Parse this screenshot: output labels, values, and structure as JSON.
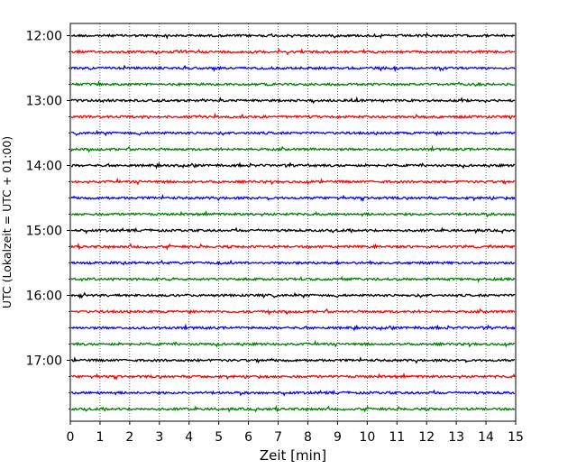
{
  "chart_data": {
    "type": "line",
    "title": "",
    "xlabel": "Zeit  [min]",
    "ylabel": "UTC (Lokalzeit = UTC + 01:00)",
    "xlim": [
      0,
      15
    ],
    "x_ticks": [
      "0",
      "1",
      "2",
      "3",
      "4",
      "5",
      "6",
      "7",
      "8",
      "9",
      "10",
      "11",
      "12",
      "13",
      "14",
      "15"
    ],
    "y_ticks": [
      "12:00",
      "13:00",
      "14:00",
      "15:00",
      "16:00",
      "17:00"
    ],
    "grid": "x-dotted",
    "trace_interval_min": 15,
    "first_trace": "12:00",
    "last_trace": "17:45",
    "trace_colors": [
      "#000000",
      "#ff0000",
      "#0000ff",
      "#008000"
    ],
    "series": [
      {
        "start": "12:00",
        "color": "#000000"
      },
      {
        "start": "12:15",
        "color": "#ff0000"
      },
      {
        "start": "12:30",
        "color": "#0000ff"
      },
      {
        "start": "12:45",
        "color": "#008000"
      },
      {
        "start": "13:00",
        "color": "#000000"
      },
      {
        "start": "13:15",
        "color": "#ff0000"
      },
      {
        "start": "13:30",
        "color": "#0000ff"
      },
      {
        "start": "13:45",
        "color": "#008000"
      },
      {
        "start": "14:00",
        "color": "#000000"
      },
      {
        "start": "14:15",
        "color": "#ff0000"
      },
      {
        "start": "14:30",
        "color": "#0000ff"
      },
      {
        "start": "14:45",
        "color": "#008000"
      },
      {
        "start": "15:00",
        "color": "#000000"
      },
      {
        "start": "15:15",
        "color": "#ff0000"
      },
      {
        "start": "15:30",
        "color": "#0000ff"
      },
      {
        "start": "15:45",
        "color": "#008000"
      },
      {
        "start": "16:00",
        "color": "#000000"
      },
      {
        "start": "16:15",
        "color": "#ff0000"
      },
      {
        "start": "16:30",
        "color": "#0000ff"
      },
      {
        "start": "16:45",
        "color": "#008000"
      },
      {
        "start": "17:00",
        "color": "#000000"
      },
      {
        "start": "17:15",
        "color": "#ff0000"
      },
      {
        "start": "17:30",
        "color": "#0000ff"
      },
      {
        "start": "17:45",
        "color": "#008000"
      }
    ]
  }
}
